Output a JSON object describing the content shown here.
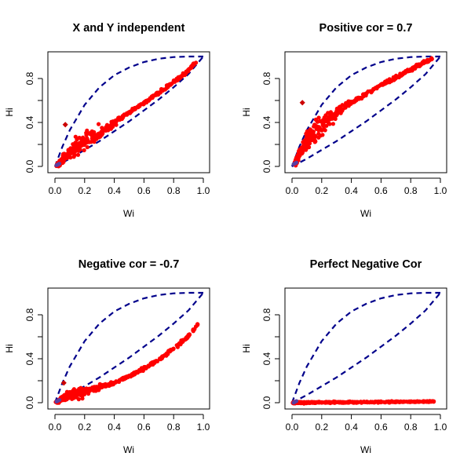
{
  "chart_data": [
    {
      "type": "scatter",
      "title": "X and Y independent",
      "xlabel": "Wi",
      "ylabel": "Hi",
      "xlim": [
        0,
        1
      ],
      "ylim": [
        0,
        1
      ],
      "xticks": [
        "0.0",
        "0.2",
        "0.4",
        "0.6",
        "0.8",
        "1.0"
      ],
      "yticks": [
        "0.0",
        "0.4",
        "0.8"
      ],
      "grid": false,
      "colors": {
        "points": "#ff0000",
        "envelope": "#00008b",
        "outlier": "#cc0000"
      },
      "bands": [
        {
          "x": 0.02,
          "y": 0.01,
          "w": 0.012
        },
        {
          "x": 0.05,
          "y": 0.06,
          "w": 0.035
        },
        {
          "x": 0.1,
          "y": 0.13,
          "w": 0.06
        },
        {
          "x": 0.15,
          "y": 0.19,
          "w": 0.08
        },
        {
          "x": 0.2,
          "y": 0.23,
          "w": 0.085
        },
        {
          "x": 0.25,
          "y": 0.27,
          "w": 0.08
        },
        {
          "x": 0.3,
          "y": 0.31,
          "w": 0.06
        },
        {
          "x": 0.35,
          "y": 0.35,
          "w": 0.035
        },
        {
          "x": 0.4,
          "y": 0.4,
          "w": 0.02
        },
        {
          "x": 0.5,
          "y": 0.49,
          "w": 0.012
        },
        {
          "x": 0.6,
          "y": 0.58,
          "w": 0.012
        },
        {
          "x": 0.7,
          "y": 0.67,
          "w": 0.012
        },
        {
          "x": 0.8,
          "y": 0.77,
          "w": 0.012
        },
        {
          "x": 0.88,
          "y": 0.85,
          "w": 0.012
        },
        {
          "x": 0.95,
          "y": 0.95,
          "w": 0.01
        }
      ],
      "outlier": {
        "x": 0.07,
        "y": 0.38
      },
      "envelope_upper": [
        [
          0,
          0
        ],
        [
          0.05,
          0.18
        ],
        [
          0.1,
          0.33
        ],
        [
          0.2,
          0.56
        ],
        [
          0.3,
          0.72
        ],
        [
          0.4,
          0.83
        ],
        [
          0.5,
          0.9
        ],
        [
          0.6,
          0.95
        ],
        [
          0.7,
          0.98
        ],
        [
          0.8,
          0.995
        ],
        [
          0.9,
          1.0
        ],
        [
          1.0,
          1.0
        ]
      ],
      "envelope_lower": [
        [
          0,
          0
        ],
        [
          0.1,
          0.07
        ],
        [
          0.2,
          0.15
        ],
        [
          0.3,
          0.23
        ],
        [
          0.4,
          0.32
        ],
        [
          0.5,
          0.41
        ],
        [
          0.6,
          0.51
        ],
        [
          0.7,
          0.61
        ],
        [
          0.8,
          0.72
        ],
        [
          0.9,
          0.84
        ],
        [
          1.0,
          1.0
        ]
      ]
    },
    {
      "type": "scatter",
      "title": "Positive cor = 0.7",
      "xlabel": "Wi",
      "ylabel": "Hi",
      "xlim": [
        0,
        1
      ],
      "ylim": [
        0,
        1
      ],
      "xticks": [
        "0.0",
        "0.2",
        "0.4",
        "0.6",
        "0.8",
        "1.0"
      ],
      "yticks": [
        "0.0",
        "0.4",
        "0.8"
      ],
      "grid": false,
      "colors": {
        "points": "#ff0000",
        "envelope": "#00008b",
        "outlier": "#cc0000"
      },
      "bands": [
        {
          "x": 0.02,
          "y": 0.02,
          "w": 0.015
        },
        {
          "x": 0.05,
          "y": 0.12,
          "w": 0.05
        },
        {
          "x": 0.1,
          "y": 0.22,
          "w": 0.09
        },
        {
          "x": 0.15,
          "y": 0.3,
          "w": 0.11
        },
        {
          "x": 0.2,
          "y": 0.37,
          "w": 0.1
        },
        {
          "x": 0.25,
          "y": 0.43,
          "w": 0.08
        },
        {
          "x": 0.3,
          "y": 0.49,
          "w": 0.05
        },
        {
          "x": 0.35,
          "y": 0.54,
          "w": 0.03
        },
        {
          "x": 0.4,
          "y": 0.58,
          "w": 0.02
        },
        {
          "x": 0.5,
          "y": 0.66,
          "w": 0.015
        },
        {
          "x": 0.6,
          "y": 0.74,
          "w": 0.015
        },
        {
          "x": 0.7,
          "y": 0.81,
          "w": 0.015
        },
        {
          "x": 0.8,
          "y": 0.88,
          "w": 0.015
        },
        {
          "x": 0.88,
          "y": 0.94,
          "w": 0.012
        },
        {
          "x": 0.95,
          "y": 0.98,
          "w": 0.01
        }
      ],
      "outlier": {
        "x": 0.07,
        "y": 0.58
      },
      "envelope_upper": [
        [
          0,
          0
        ],
        [
          0.05,
          0.18
        ],
        [
          0.1,
          0.33
        ],
        [
          0.2,
          0.56
        ],
        [
          0.3,
          0.72
        ],
        [
          0.4,
          0.83
        ],
        [
          0.5,
          0.9
        ],
        [
          0.6,
          0.95
        ],
        [
          0.7,
          0.98
        ],
        [
          0.8,
          0.995
        ],
        [
          0.9,
          1.0
        ],
        [
          1.0,
          1.0
        ]
      ],
      "envelope_lower": [
        [
          0,
          0
        ],
        [
          0.1,
          0.07
        ],
        [
          0.2,
          0.15
        ],
        [
          0.3,
          0.23
        ],
        [
          0.4,
          0.32
        ],
        [
          0.5,
          0.41
        ],
        [
          0.6,
          0.51
        ],
        [
          0.7,
          0.61
        ],
        [
          0.8,
          0.72
        ],
        [
          0.9,
          0.84
        ],
        [
          1.0,
          1.0
        ]
      ]
    },
    {
      "type": "scatter",
      "title": "Negative cor = -0.7",
      "xlabel": "Wi",
      "ylabel": "Hi",
      "xlim": [
        0,
        1
      ],
      "ylim": [
        0,
        1
      ],
      "xticks": [
        "0.0",
        "0.2",
        "0.4",
        "0.6",
        "0.8",
        "1.0"
      ],
      "yticks": [
        "0.0",
        "0.4",
        "0.8"
      ],
      "grid": false,
      "colors": {
        "points": "#ff0000",
        "envelope": "#00008b",
        "outlier": "#cc0000"
      },
      "bands": [
        {
          "x": 0.02,
          "y": 0.01,
          "w": 0.01
        },
        {
          "x": 0.05,
          "y": 0.04,
          "w": 0.02
        },
        {
          "x": 0.1,
          "y": 0.07,
          "w": 0.035
        },
        {
          "x": 0.15,
          "y": 0.09,
          "w": 0.045
        },
        {
          "x": 0.2,
          "y": 0.11,
          "w": 0.045
        },
        {
          "x": 0.25,
          "y": 0.125,
          "w": 0.04
        },
        {
          "x": 0.3,
          "y": 0.14,
          "w": 0.03
        },
        {
          "x": 0.35,
          "y": 0.16,
          "w": 0.02
        },
        {
          "x": 0.4,
          "y": 0.18,
          "w": 0.015
        },
        {
          "x": 0.5,
          "y": 0.24,
          "w": 0.012
        },
        {
          "x": 0.6,
          "y": 0.31,
          "w": 0.012
        },
        {
          "x": 0.7,
          "y": 0.39,
          "w": 0.012
        },
        {
          "x": 0.8,
          "y": 0.49,
          "w": 0.012
        },
        {
          "x": 0.88,
          "y": 0.58,
          "w": 0.012
        },
        {
          "x": 0.94,
          "y": 0.67,
          "w": 0.01
        },
        {
          "x": 0.96,
          "y": 0.72,
          "w": 0.01
        }
      ],
      "outlier": {
        "x": 0.06,
        "y": 0.18
      },
      "envelope_upper": [
        [
          0,
          0
        ],
        [
          0.05,
          0.18
        ],
        [
          0.1,
          0.33
        ],
        [
          0.2,
          0.56
        ],
        [
          0.3,
          0.72
        ],
        [
          0.4,
          0.83
        ],
        [
          0.5,
          0.9
        ],
        [
          0.6,
          0.95
        ],
        [
          0.7,
          0.98
        ],
        [
          0.8,
          0.995
        ],
        [
          0.9,
          1.0
        ],
        [
          1.0,
          1.0
        ]
      ],
      "envelope_lower": [
        [
          0,
          0
        ],
        [
          0.1,
          0.07
        ],
        [
          0.2,
          0.15
        ],
        [
          0.3,
          0.23
        ],
        [
          0.4,
          0.32
        ],
        [
          0.5,
          0.41
        ],
        [
          0.6,
          0.51
        ],
        [
          0.7,
          0.61
        ],
        [
          0.8,
          0.72
        ],
        [
          0.9,
          0.84
        ],
        [
          1.0,
          1.0
        ]
      ]
    },
    {
      "type": "scatter",
      "title": "Perfect Negative Cor",
      "xlabel": "Wi",
      "ylabel": "Hi",
      "xlim": [
        0,
        1
      ],
      "ylim": [
        0,
        1
      ],
      "xticks": [
        "0.0",
        "0.2",
        "0.4",
        "0.6",
        "0.8",
        "1.0"
      ],
      "yticks": [
        "0.0",
        "0.4",
        "0.8"
      ],
      "grid": false,
      "colors": {
        "points": "#ff0000",
        "envelope": "#00008b",
        "outlier": "#cc0000"
      },
      "bands": [
        {
          "x": 0.01,
          "y": 0.0,
          "w": 0.006
        },
        {
          "x": 0.1,
          "y": 0.002,
          "w": 0.006
        },
        {
          "x": 0.2,
          "y": 0.003,
          "w": 0.006
        },
        {
          "x": 0.3,
          "y": 0.004,
          "w": 0.006
        },
        {
          "x": 0.4,
          "y": 0.005,
          "w": 0.006
        },
        {
          "x": 0.5,
          "y": 0.006,
          "w": 0.006
        },
        {
          "x": 0.6,
          "y": 0.007,
          "w": 0.006
        },
        {
          "x": 0.7,
          "y": 0.008,
          "w": 0.006
        },
        {
          "x": 0.8,
          "y": 0.009,
          "w": 0.006
        },
        {
          "x": 0.9,
          "y": 0.01,
          "w": 0.006
        },
        {
          "x": 0.96,
          "y": 0.012,
          "w": 0.006
        }
      ],
      "outlier": null,
      "envelope_upper": [
        [
          0,
          0
        ],
        [
          0.05,
          0.18
        ],
        [
          0.1,
          0.33
        ],
        [
          0.2,
          0.56
        ],
        [
          0.3,
          0.72
        ],
        [
          0.4,
          0.83
        ],
        [
          0.5,
          0.9
        ],
        [
          0.6,
          0.95
        ],
        [
          0.7,
          0.98
        ],
        [
          0.8,
          0.995
        ],
        [
          0.9,
          1.0
        ],
        [
          1.0,
          1.0
        ]
      ],
      "envelope_lower": [
        [
          0,
          0
        ],
        [
          0.1,
          0.07
        ],
        [
          0.2,
          0.15
        ],
        [
          0.3,
          0.23
        ],
        [
          0.4,
          0.32
        ],
        [
          0.5,
          0.41
        ],
        [
          0.6,
          0.51
        ],
        [
          0.7,
          0.61
        ],
        [
          0.8,
          0.72
        ],
        [
          0.9,
          0.84
        ],
        [
          1.0,
          1.0
        ]
      ]
    }
  ]
}
